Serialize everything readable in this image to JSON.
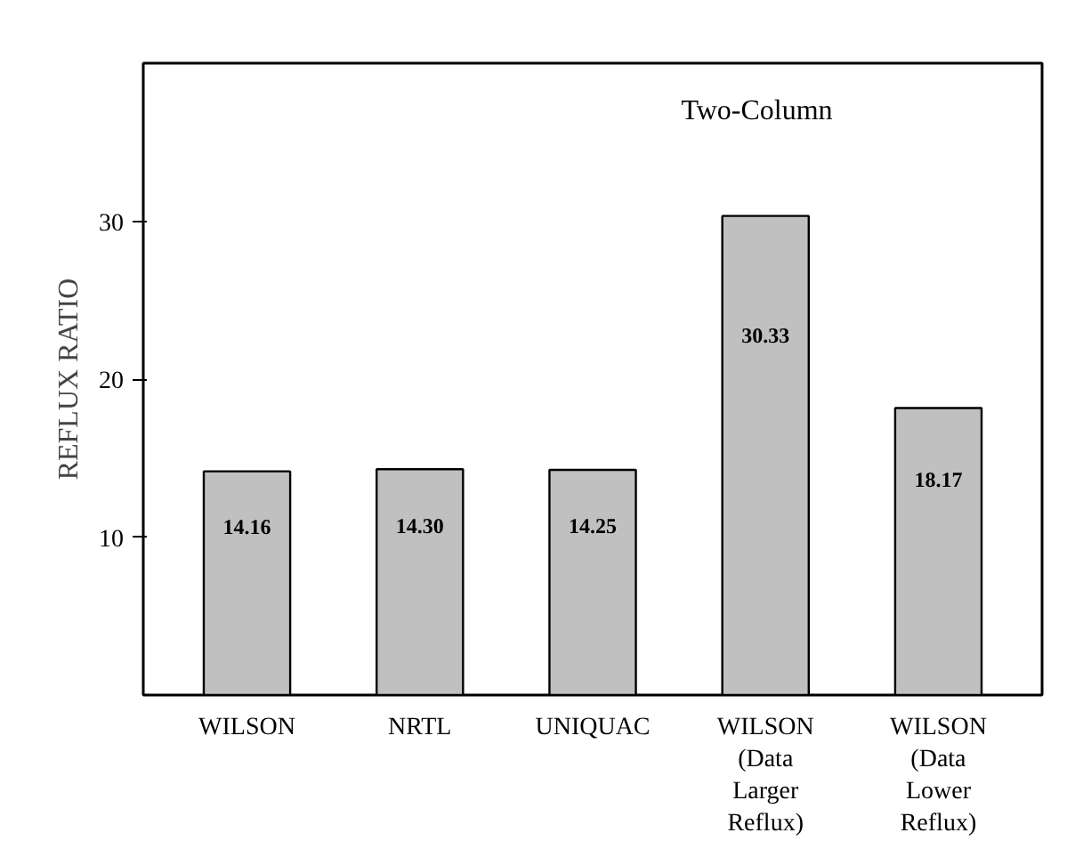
{
  "chart_data": {
    "type": "bar",
    "ylabel": "REFLUX RATIO",
    "annotations": [
      "Two-Column"
    ],
    "categories": [
      "WILSON",
      "NRTL",
      "UNIQUAC",
      "WILSON\n(Data\nLarger\nReflux)",
      "WILSON\n(Data\nLower\nReflux)"
    ],
    "values": [
      14.16,
      14.3,
      14.25,
      30.33,
      18.17
    ],
    "color": "#c0c0c0",
    "value_labels": [
      "14.16",
      "14.30",
      "14.25",
      "30.33",
      "18.17"
    ],
    "ylim": [
      0,
      40
    ],
    "yticks": [
      10,
      20,
      30
    ],
    "grid": false
  }
}
